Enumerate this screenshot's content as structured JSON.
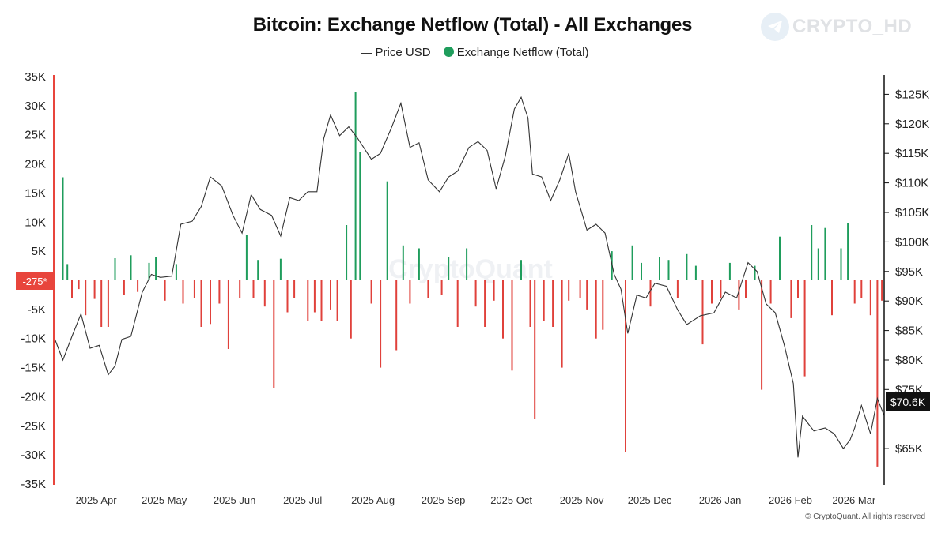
{
  "title": "Bitcoin: Exchange Netflow (Total) - All Exchanges",
  "legend": {
    "price_label": "Price USD",
    "netflow_label": "Exchange Netflow (Total)"
  },
  "watermark": {
    "name": "CRYPTO_HD",
    "icon": "telegram-icon",
    "center_logo": "CryptoQuant"
  },
  "copyright": "© CryptoQuant. All rights reserved",
  "colors": {
    "inflow": "#1f9d5c",
    "outflow": "#e0413b",
    "price": "#333333",
    "marker": "#e8453c",
    "price_tag": "#111111"
  },
  "current_marker": {
    "left_value_label": "-275*",
    "right_price_label": "$70.6K"
  },
  "chart_data": {
    "type": "bar",
    "title": "Bitcoin: Exchange Netflow (Total) - All Exchanges",
    "x_tick_labels": [
      "2025 Apr",
      "2025 May",
      "2025 Jun",
      "2025 Jul",
      "2025 Aug",
      "2025 Sep",
      "2025 Oct",
      "2025 Nov",
      "2025 Dec",
      "2026 Jan",
      "2026 Feb",
      "2026 Mar"
    ],
    "x_tick_dates": [
      "2025-04-01",
      "2025-05-01",
      "2025-06-01",
      "2025-07-01",
      "2025-08-01",
      "2025-09-01",
      "2025-10-01",
      "2025-11-01",
      "2025-12-01",
      "2026-01-01",
      "2026-02-01",
      "2026-03-01"
    ],
    "x_range": [
      "2025-03-14",
      "2026-03-15"
    ],
    "left_axis": {
      "ticks": [
        35000,
        30000,
        25000,
        20000,
        15000,
        10000,
        5000,
        0,
        -5000,
        -10000,
        -15000,
        -20000,
        -25000,
        -30000,
        -35000
      ],
      "tick_labels": [
        "35K",
        "30K",
        "25K",
        "20K",
        "15K",
        "10K",
        "5K",
        "",
        "-5K",
        "-10K",
        "-15K",
        "-20K",
        "-25K",
        "-30K",
        "-35K"
      ],
      "range": [
        -35000,
        35000
      ]
    },
    "right_axis": {
      "ticks": [
        125000,
        120000,
        115000,
        110000,
        105000,
        100000,
        95000,
        90000,
        85000,
        80000,
        75000,
        65000
      ],
      "tick_labels": [
        "$125K",
        "$120K",
        "$115K",
        "$110K",
        "$105K",
        "$100K",
        "$95K",
        "$90K",
        "$85K",
        "$80K",
        "$75K",
        "$65K"
      ],
      "range": [
        59000,
        128000
      ]
    },
    "grid": false,
    "legend_position": "top-center",
    "series": [
      {
        "name": "Exchange Netflow (Total)",
        "type": "bar",
        "points": [
          [
            "2025-03-14",
            -10000
          ],
          [
            "2025-03-18",
            17700
          ],
          [
            "2025-03-20",
            2800
          ],
          [
            "2025-03-22",
            -3000
          ],
          [
            "2025-03-25",
            -1500
          ],
          [
            "2025-03-28",
            -6000
          ],
          [
            "2025-04-01",
            -3200
          ],
          [
            "2025-04-04",
            -8000
          ],
          [
            "2025-04-07",
            -8000
          ],
          [
            "2025-04-10",
            3800
          ],
          [
            "2025-04-14",
            -2500
          ],
          [
            "2025-04-17",
            4300
          ],
          [
            "2025-04-20",
            -2000
          ],
          [
            "2025-04-25",
            3000
          ],
          [
            "2025-04-28",
            4000
          ],
          [
            "2025-05-02",
            -3500
          ],
          [
            "2025-05-07",
            2800
          ],
          [
            "2025-05-10",
            -4000
          ],
          [
            "2025-05-15",
            -3000
          ],
          [
            "2025-05-18",
            -8000
          ],
          [
            "2025-05-22",
            -7500
          ],
          [
            "2025-05-26",
            -4000
          ],
          [
            "2025-05-30",
            -11800
          ],
          [
            "2025-06-04",
            -3000
          ],
          [
            "2025-06-07",
            7800
          ],
          [
            "2025-06-10",
            -3000
          ],
          [
            "2025-06-12",
            3500
          ],
          [
            "2025-06-15",
            -4500
          ],
          [
            "2025-06-19",
            -18500
          ],
          [
            "2025-06-22",
            3700
          ],
          [
            "2025-06-25",
            -5500
          ],
          [
            "2025-06-28",
            -3000
          ],
          [
            "2025-07-04",
            -7000
          ],
          [
            "2025-07-07",
            -5500
          ],
          [
            "2025-07-10",
            -7000
          ],
          [
            "2025-07-14",
            -5000
          ],
          [
            "2025-07-17",
            -7000
          ],
          [
            "2025-07-21",
            9500
          ],
          [
            "2025-07-23",
            -10000
          ],
          [
            "2025-07-25",
            32300
          ],
          [
            "2025-07-27",
            22000
          ],
          [
            "2025-08-01",
            -4000
          ],
          [
            "2025-08-05",
            -15000
          ],
          [
            "2025-08-08",
            17000
          ],
          [
            "2025-08-12",
            -12000
          ],
          [
            "2025-08-15",
            6000
          ],
          [
            "2025-08-18",
            -4000
          ],
          [
            "2025-08-22",
            5500
          ],
          [
            "2025-08-26",
            -3000
          ],
          [
            "2025-09-01",
            -2500
          ],
          [
            "2025-09-04",
            4000
          ],
          [
            "2025-09-08",
            -8000
          ],
          [
            "2025-09-12",
            5500
          ],
          [
            "2025-09-16",
            -4500
          ],
          [
            "2025-09-20",
            -8000
          ],
          [
            "2025-09-24",
            -3500
          ],
          [
            "2025-09-28",
            -10000
          ],
          [
            "2025-10-02",
            -15500
          ],
          [
            "2025-10-06",
            3500
          ],
          [
            "2025-10-10",
            -8000
          ],
          [
            "2025-10-12",
            -23800
          ],
          [
            "2025-10-16",
            -7000
          ],
          [
            "2025-10-20",
            -8000
          ],
          [
            "2025-10-24",
            -15000
          ],
          [
            "2025-10-27",
            -3500
          ],
          [
            "2025-11-01",
            -3000
          ],
          [
            "2025-11-04",
            -5000
          ],
          [
            "2025-11-08",
            -10000
          ],
          [
            "2025-11-11",
            -8500
          ],
          [
            "2025-11-15",
            5000
          ],
          [
            "2025-11-21",
            -29500
          ],
          [
            "2025-11-24",
            6000
          ],
          [
            "2025-11-28",
            3000
          ],
          [
            "2025-12-02",
            -4500
          ],
          [
            "2025-12-06",
            4000
          ],
          [
            "2025-12-10",
            3500
          ],
          [
            "2025-12-14",
            -3000
          ],
          [
            "2025-12-18",
            4500
          ],
          [
            "2025-12-22",
            2500
          ],
          [
            "2025-12-25",
            -11000
          ],
          [
            "2025-12-29",
            -4000
          ],
          [
            "2026-01-02",
            -3000
          ],
          [
            "2026-01-06",
            3000
          ],
          [
            "2026-01-10",
            -5000
          ],
          [
            "2026-01-13",
            -3000
          ],
          [
            "2026-01-17",
            2500
          ],
          [
            "2026-01-20",
            -18800
          ],
          [
            "2026-01-24",
            -4000
          ],
          [
            "2026-01-28",
            7500
          ],
          [
            "2026-02-02",
            -6500
          ],
          [
            "2026-02-05",
            -3000
          ],
          [
            "2026-02-08",
            -16500
          ],
          [
            "2026-02-11",
            9500
          ],
          [
            "2026-02-14",
            5500
          ],
          [
            "2026-02-17",
            9000
          ],
          [
            "2026-02-20",
            -6000
          ],
          [
            "2026-02-24",
            5500
          ],
          [
            "2026-02-27",
            9900
          ],
          [
            "2026-03-02",
            -4000
          ],
          [
            "2026-03-05",
            -3000
          ],
          [
            "2026-03-09",
            -6000
          ],
          [
            "2026-03-12",
            -32000
          ],
          [
            "2026-03-14",
            -3500
          ]
        ]
      },
      {
        "name": "Price USD",
        "type": "line",
        "points": [
          [
            "2025-03-14",
            84000
          ],
          [
            "2025-03-18",
            80000
          ],
          [
            "2025-03-22",
            84000
          ],
          [
            "2025-03-26",
            87800
          ],
          [
            "2025-03-30",
            82000
          ],
          [
            "2025-04-03",
            82500
          ],
          [
            "2025-04-07",
            77500
          ],
          [
            "2025-04-10",
            79000
          ],
          [
            "2025-04-13",
            83500
          ],
          [
            "2025-04-17",
            84000
          ],
          [
            "2025-04-22",
            91500
          ],
          [
            "2025-04-26",
            94500
          ],
          [
            "2025-04-30",
            94000
          ],
          [
            "2025-05-05",
            94200
          ],
          [
            "2025-05-09",
            103000
          ],
          [
            "2025-05-14",
            103500
          ],
          [
            "2025-05-18",
            106000
          ],
          [
            "2025-05-22",
            111000
          ],
          [
            "2025-05-27",
            109500
          ],
          [
            "2025-06-01",
            104500
          ],
          [
            "2025-06-05",
            101500
          ],
          [
            "2025-06-09",
            108000
          ],
          [
            "2025-06-13",
            105500
          ],
          [
            "2025-06-18",
            104500
          ],
          [
            "2025-06-22",
            101000
          ],
          [
            "2025-06-26",
            107500
          ],
          [
            "2025-06-30",
            107000
          ],
          [
            "2025-07-04",
            108500
          ],
          [
            "2025-07-08",
            108500
          ],
          [
            "2025-07-11",
            117500
          ],
          [
            "2025-07-14",
            121500
          ],
          [
            "2025-07-18",
            118000
          ],
          [
            "2025-07-22",
            119500
          ],
          [
            "2025-07-26",
            117500
          ],
          [
            "2025-08-01",
            114000
          ],
          [
            "2025-08-05",
            115000
          ],
          [
            "2025-08-10",
            119500
          ],
          [
            "2025-08-14",
            123500
          ],
          [
            "2025-08-18",
            116000
          ],
          [
            "2025-08-22",
            116800
          ],
          [
            "2025-08-26",
            110500
          ],
          [
            "2025-08-31",
            108500
          ],
          [
            "2025-09-04",
            111000
          ],
          [
            "2025-09-08",
            112000
          ],
          [
            "2025-09-13",
            116000
          ],
          [
            "2025-09-17",
            117000
          ],
          [
            "2025-09-21",
            115500
          ],
          [
            "2025-09-25",
            109000
          ],
          [
            "2025-09-29",
            114500
          ],
          [
            "2025-10-03",
            122500
          ],
          [
            "2025-10-06",
            124500
          ],
          [
            "2025-10-09",
            121000
          ],
          [
            "2025-10-11",
            111500
          ],
          [
            "2025-10-15",
            111000
          ],
          [
            "2025-10-19",
            107000
          ],
          [
            "2025-10-23",
            110500
          ],
          [
            "2025-10-27",
            115000
          ],
          [
            "2025-10-30",
            108500
          ],
          [
            "2025-11-04",
            102000
          ],
          [
            "2025-11-08",
            103000
          ],
          [
            "2025-11-12",
            101500
          ],
          [
            "2025-11-16",
            94500
          ],
          [
            "2025-11-19",
            92000
          ],
          [
            "2025-11-22",
            84500
          ],
          [
            "2025-11-26",
            91000
          ],
          [
            "2025-11-30",
            90500
          ],
          [
            "2025-12-04",
            93000
          ],
          [
            "2025-12-09",
            92500
          ],
          [
            "2025-12-14",
            88500
          ],
          [
            "2025-12-18",
            86000
          ],
          [
            "2025-12-24",
            87500
          ],
          [
            "2025-12-30",
            88000
          ],
          [
            "2026-01-04",
            91500
          ],
          [
            "2026-01-09",
            90500
          ],
          [
            "2026-01-14",
            96500
          ],
          [
            "2026-01-18",
            95000
          ],
          [
            "2026-01-22",
            89500
          ],
          [
            "2026-01-26",
            88000
          ],
          [
            "2026-01-30",
            82500
          ],
          [
            "2026-02-03",
            76000
          ],
          [
            "2026-02-05",
            63500
          ],
          [
            "2026-02-07",
            70500
          ],
          [
            "2026-02-12",
            68000
          ],
          [
            "2026-02-17",
            68500
          ],
          [
            "2026-02-21",
            67500
          ],
          [
            "2026-02-25",
            65000
          ],
          [
            "2026-02-28",
            66500
          ],
          [
            "2026-03-02",
            68500
          ],
          [
            "2026-03-05",
            72300
          ],
          [
            "2026-03-09",
            67500
          ],
          [
            "2026-03-12",
            73500
          ],
          [
            "2026-03-15",
            70600
          ]
        ]
      }
    ]
  }
}
